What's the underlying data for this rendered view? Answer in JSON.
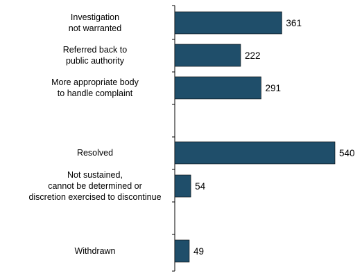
{
  "chart_data": {
    "type": "bar",
    "orientation": "horizontal",
    "categories": [
      [
        "Investigation",
        "not warranted"
      ],
      [
        "Referred back to",
        "public authority"
      ],
      [
        "More appropriate body",
        "to handle complaint"
      ],
      [
        "Resolved"
      ],
      [
        "Not sustained,",
        "cannot be determined or",
        "discretion exercised to discontinue"
      ],
      [
        "Withdrawn"
      ]
    ],
    "values": [
      361,
      222,
      291,
      540,
      54,
      49
    ],
    "xlim": [
      0,
      540
    ],
    "gaps_after_index": [
      2,
      4
    ],
    "bar_color": "#1f4e6a",
    "axis_color": "#000000",
    "title": "",
    "xlabel": "",
    "ylabel": "",
    "grid": false,
    "legend": "none"
  }
}
